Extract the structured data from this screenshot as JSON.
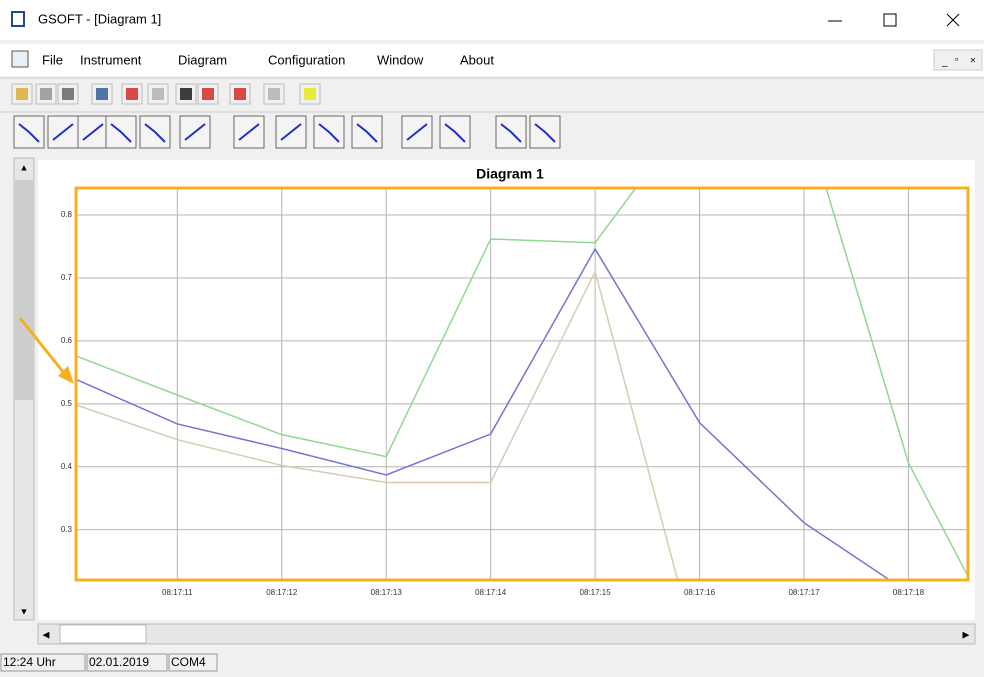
{
  "window": {
    "title": "GSOFT - [Diagram 1]"
  },
  "menu": [
    "File",
    "Instrument",
    "Diagram",
    "Configuration",
    "Window",
    "About"
  ],
  "chart_data": {
    "type": "line",
    "title": "Diagram 1",
    "x": [
      10,
      11,
      12,
      13,
      14,
      15,
      16,
      17,
      18,
      19
    ],
    "series": [
      {
        "color": "#8fd98f",
        "values": [
          0.578,
          0.514,
          0.451,
          0.416,
          0.762,
          0.756,
          0.98,
          0.96,
          0.406,
          0.09
        ]
      },
      {
        "color": "#d8cab4",
        "values": [
          0.5,
          0.443,
          0.402,
          0.375,
          0.375,
          0.71,
          0.09,
          null,
          null,
          null
        ]
      },
      {
        "color": "#7474d4",
        "values": [
          0.541,
          0.468,
          0.429,
          0.387,
          0.452,
          0.746,
          0.47,
          0.311,
          0.2,
          null
        ]
      }
    ],
    "xlim": [
      10.03,
      18.57
    ],
    "ylim": [
      0.22,
      0.843
    ],
    "xticks": [
      {
        "value": 11,
        "label": "08:17:11"
      },
      {
        "value": 12,
        "label": "08:17:12"
      },
      {
        "value": 13,
        "label": "08:17:13"
      },
      {
        "value": 14,
        "label": "08:17:14"
      },
      {
        "value": 15,
        "label": "08:17:15"
      },
      {
        "value": 16,
        "label": "08:17:16"
      },
      {
        "value": 17,
        "label": "08:17:17"
      },
      {
        "value": 18,
        "label": "08:17:18"
      }
    ],
    "yticks": [
      0.3,
      0.4,
      0.5,
      0.6,
      0.7,
      0.8
    ],
    "grid": true
  },
  "status_bar": [
    "12:24 Uhr",
    "02.01.2019",
    "COM4"
  ]
}
